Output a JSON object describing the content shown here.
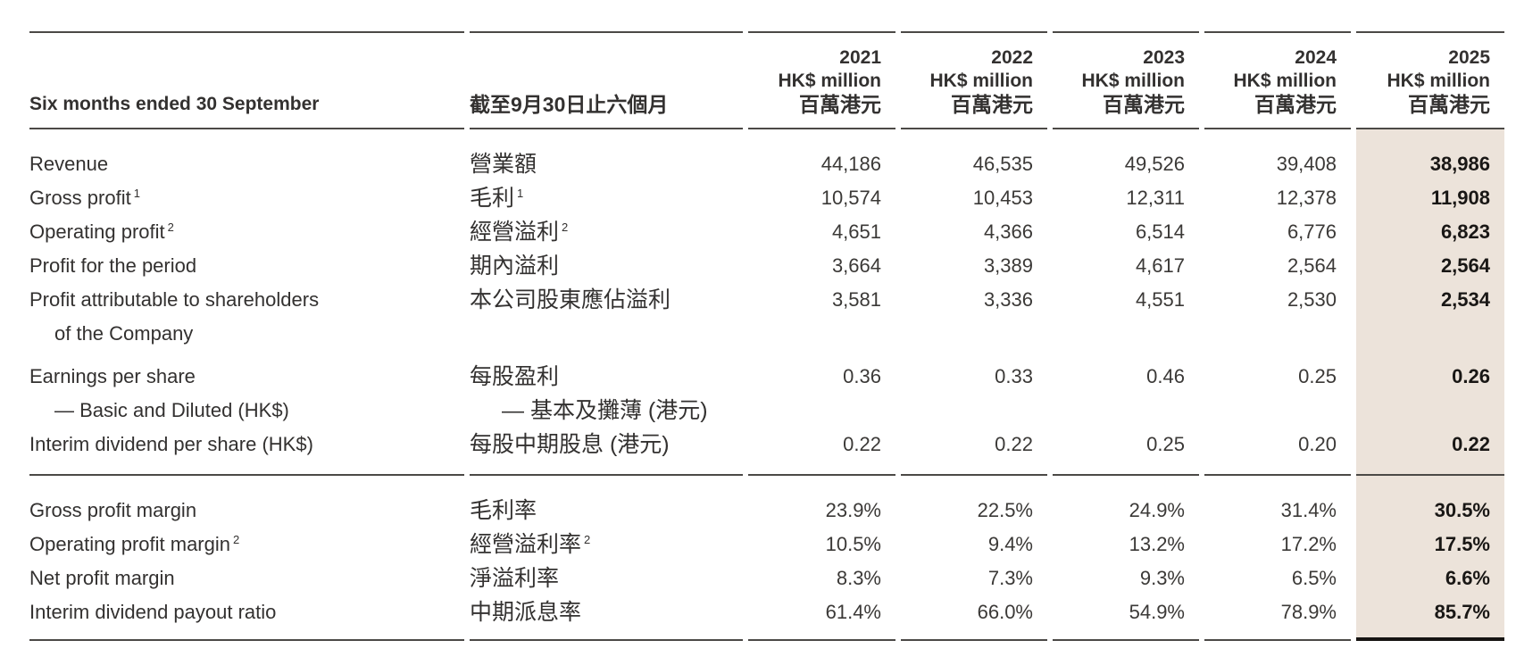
{
  "meta": {
    "highlight_color": "#ece3da",
    "rule_color": "#4b4946",
    "text_color": "#333130"
  },
  "table": {
    "header": {
      "period_en": "Six months ended 30 September",
      "period_zh": "截至9月30日止六個月",
      "years": [
        {
          "year": "2021",
          "unit_en": "HK$ million",
          "unit_zh": "百萬港元"
        },
        {
          "year": "2022",
          "unit_en": "HK$ million",
          "unit_zh": "百萬港元"
        },
        {
          "year": "2023",
          "unit_en": "HK$ million",
          "unit_zh": "百萬港元"
        },
        {
          "year": "2024",
          "unit_en": "HK$ million",
          "unit_zh": "百萬港元"
        },
        {
          "year": "2025",
          "unit_en": "HK$ million",
          "unit_zh": "百萬港元"
        }
      ]
    },
    "sections": [
      {
        "rows": [
          {
            "en": "Revenue",
            "zh": "營業額",
            "values": [
              "44,186",
              "46,535",
              "49,526",
              "39,408",
              "38,986"
            ]
          },
          {
            "en": "Gross profit",
            "en_sup": "1",
            "zh": "毛利",
            "zh_sup": "1",
            "values": [
              "10,574",
              "10,453",
              "12,311",
              "12,378",
              "11,908"
            ]
          },
          {
            "en": "Operating profit",
            "en_sup": "2",
            "zh": "經營溢利",
            "zh_sup": "2",
            "values": [
              "4,651",
              "4,366",
              "6,514",
              "6,776",
              "6,823"
            ]
          },
          {
            "en": "Profit for the period",
            "zh": "期內溢利",
            "values": [
              "3,664",
              "3,389",
              "4,617",
              "2,564",
              "2,564"
            ]
          },
          {
            "en": "Profit attributable to shareholders",
            "en_cont": "of the Company",
            "zh": "本公司股東應佔溢利",
            "values": [
              "3,581",
              "3,336",
              "4,551",
              "2,530",
              "2,534"
            ]
          },
          {
            "en": "Earnings per share",
            "en_cont": "— Basic and Diluted (HK$)",
            "zh": "每股盈利",
            "zh_cont": "— 基本及攤薄 (港元)",
            "extra_gap": true,
            "values": [
              "0.36",
              "0.33",
              "0.46",
              "0.25",
              "0.26"
            ]
          },
          {
            "en": "Interim dividend per share (HK$)",
            "zh": "每股中期股息 (港元)",
            "values": [
              "0.22",
              "0.22",
              "0.25",
              "0.20",
              "0.22"
            ]
          }
        ]
      },
      {
        "rows": [
          {
            "en": "Gross profit margin",
            "zh": "毛利率",
            "values": [
              "23.9%",
              "22.5%",
              "24.9%",
              "31.4%",
              "30.5%"
            ]
          },
          {
            "en": "Operating profit margin",
            "en_sup": "2",
            "zh": "經營溢利率",
            "zh_sup": "2",
            "values": [
              "10.5%",
              "9.4%",
              "13.2%",
              "17.2%",
              "17.5%"
            ]
          },
          {
            "en": "Net profit margin",
            "zh": "淨溢利率",
            "values": [
              "8.3%",
              "7.3%",
              "9.3%",
              "6.5%",
              "6.6%"
            ]
          },
          {
            "en": "Interim dividend payout ratio",
            "zh": "中期派息率",
            "values": [
              "61.4%",
              "66.0%",
              "54.9%",
              "78.9%",
              "85.7%"
            ]
          }
        ]
      }
    ]
  }
}
